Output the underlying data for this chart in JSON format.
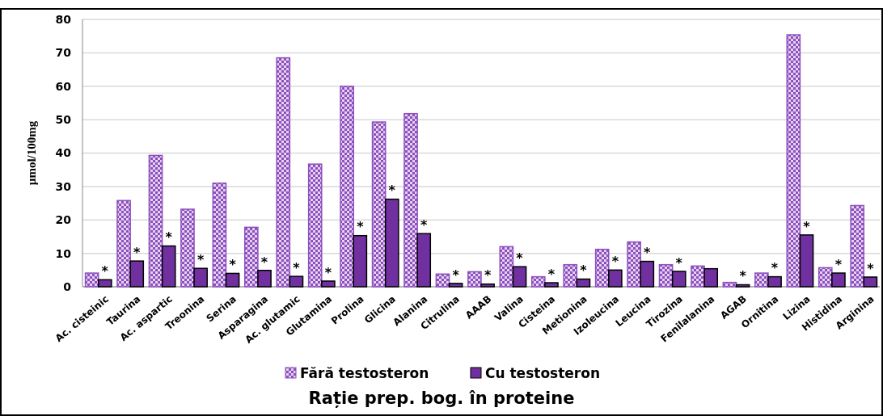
{
  "chart_data": {
    "type": "bar",
    "title": "Rație prep. bog. în proteine",
    "ylabel": "µmol/100mg",
    "categories": [
      "Ac. cisteinic",
      "Taurina",
      "Ac. aspartic",
      "Treonina",
      "Serina",
      "Asparagina",
      "Ac. glutamic",
      "Glutamina",
      "Prolina",
      "Glicina",
      "Alanina",
      "Citrulina",
      "AAAB",
      "Valina",
      "Cisteina",
      "Metionina",
      "Izoleucina",
      "Leucina",
      "Tirozina",
      "Fenilalanina",
      "AGAB",
      "Ornitina",
      "Lizina",
      "Histidina",
      "Arginina"
    ],
    "series": [
      {
        "name": "Fără testosteron",
        "color": "#8e4fbf",
        "values": [
          4.1,
          25.8,
          39.3,
          23.2,
          31,
          17.8,
          68.5,
          36.7,
          60,
          49.3,
          51.8,
          3.8,
          4.5,
          12,
          3,
          6.6,
          11.2,
          13.4,
          6.6,
          6.2,
          1.3,
          4.1,
          75.4,
          5.7,
          24.3
        ]
      },
      {
        "name": "Cu testosteron",
        "color": "#7030a0",
        "values": [
          2.1,
          7.7,
          12.2,
          5.5,
          4,
          4.9,
          3.1,
          1.7,
          15.3,
          26.2,
          15.9,
          1,
          0.8,
          6,
          1.2,
          2.3,
          5,
          7.6,
          4.6,
          5.4,
          0.6,
          3,
          15.5,
          4.1,
          2.9
        ]
      }
    ],
    "ylim": [
      0,
      80
    ],
    "yticks": [
      0,
      10,
      20,
      30,
      40,
      50,
      60,
      70,
      80
    ],
    "grid": "y",
    "legend": "bottom",
    "annotations": [
      {
        "text": "*",
        "x": "Ac. cisteinic",
        "y": 2.1
      },
      {
        "text": "*",
        "x": "Taurina",
        "y": 7.7
      },
      {
        "text": "*",
        "x": "Ac. aspartic",
        "y": 12.2
      },
      {
        "text": "*",
        "x": "Treonina",
        "y": 5.5
      },
      {
        "text": "*",
        "x": "Serina",
        "y": 4
      },
      {
        "text": "*",
        "x": "Asparagina",
        "y": 4.9
      },
      {
        "text": "*",
        "x": "Ac. glutamic",
        "y": 3.1
      },
      {
        "text": "*",
        "x": "Glutamina",
        "y": 1.7
      },
      {
        "text": "*",
        "x": "Prolina",
        "y": 15.3
      },
      {
        "text": "*",
        "x": "Glicina",
        "y": 26.2
      },
      {
        "text": "*",
        "x": "Alanina",
        "y": 15.9
      },
      {
        "text": "*",
        "x": "Citrulina",
        "y": 1
      },
      {
        "text": "*",
        "x": "AAAB",
        "y": 0.8
      },
      {
        "text": "*",
        "x": "Valina",
        "y": 6
      },
      {
        "text": "*",
        "x": "Cisteina",
        "y": 1.2
      },
      {
        "text": "*",
        "x": "Metionina",
        "y": 2.3
      },
      {
        "text": "*",
        "x": "Izoleucina",
        "y": 5
      },
      {
        "text": "*",
        "x": "Leucina",
        "y": 7.6
      },
      {
        "text": "*",
        "x": "Tirozina",
        "y": 4.6
      },
      {
        "text": "*",
        "x": "AGAB",
        "y": 0.6
      },
      {
        "text": "*",
        "x": "Ornitina",
        "y": 3
      },
      {
        "text": "*",
        "x": "Lizina",
        "y": 15.5
      },
      {
        "text": "*",
        "x": "Histidina",
        "y": 4.1
      },
      {
        "text": "*",
        "x": "Arginina",
        "y": 2.9
      }
    ]
  }
}
